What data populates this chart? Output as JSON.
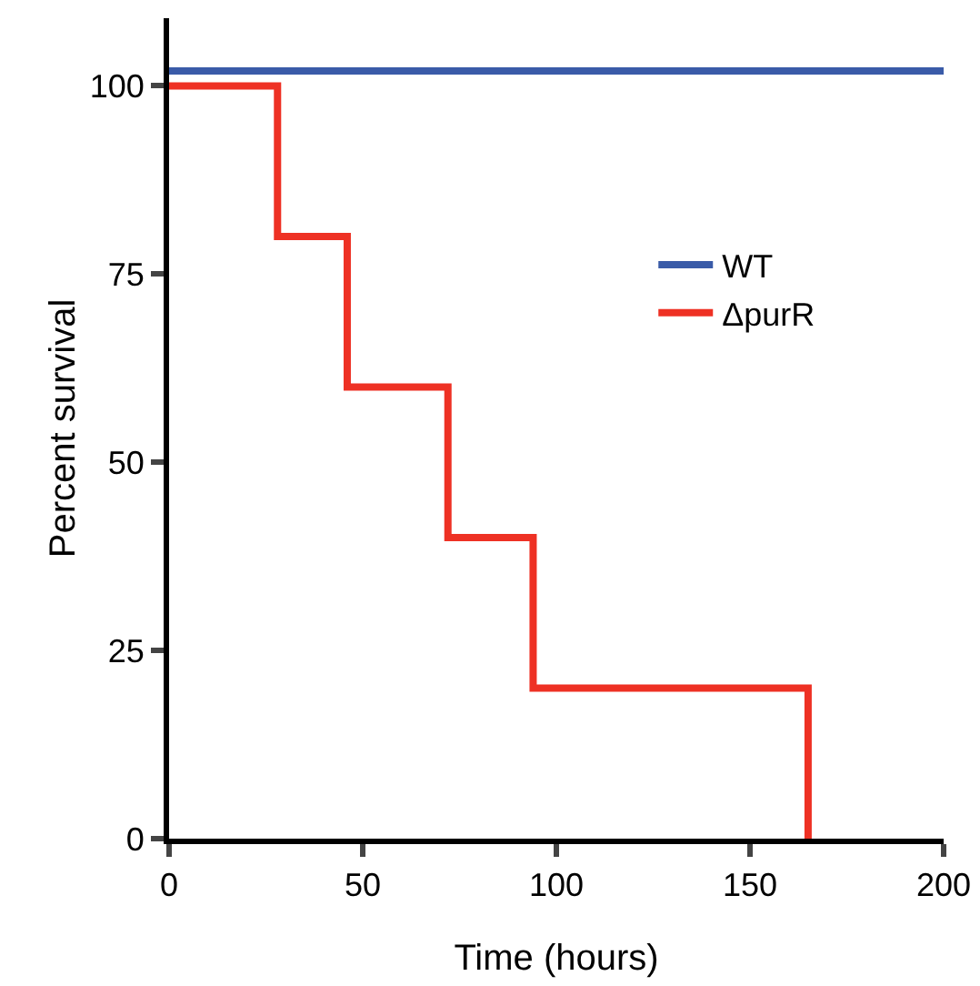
{
  "chart_data": {
    "type": "step",
    "xlabel": "Time (hours)",
    "ylabel": "Percent survival",
    "xlim": [
      0,
      200
    ],
    "ylim": [
      0,
      109
    ],
    "xticks": [
      0,
      50,
      100,
      150,
      200
    ],
    "yticks": [
      0,
      25,
      50,
      75,
      100
    ],
    "grid": false,
    "legend": "right",
    "series": [
      {
        "name": "WT",
        "color": "#3a5ba8",
        "x": [
          0,
          200
        ],
        "values": [
          102,
          102
        ]
      },
      {
        "name": "ΔpurR",
        "color": "#ee3124",
        "x": [
          0,
          28,
          46,
          72,
          94,
          165
        ],
        "values": [
          100,
          80,
          60,
          40,
          20,
          0
        ]
      }
    ]
  }
}
